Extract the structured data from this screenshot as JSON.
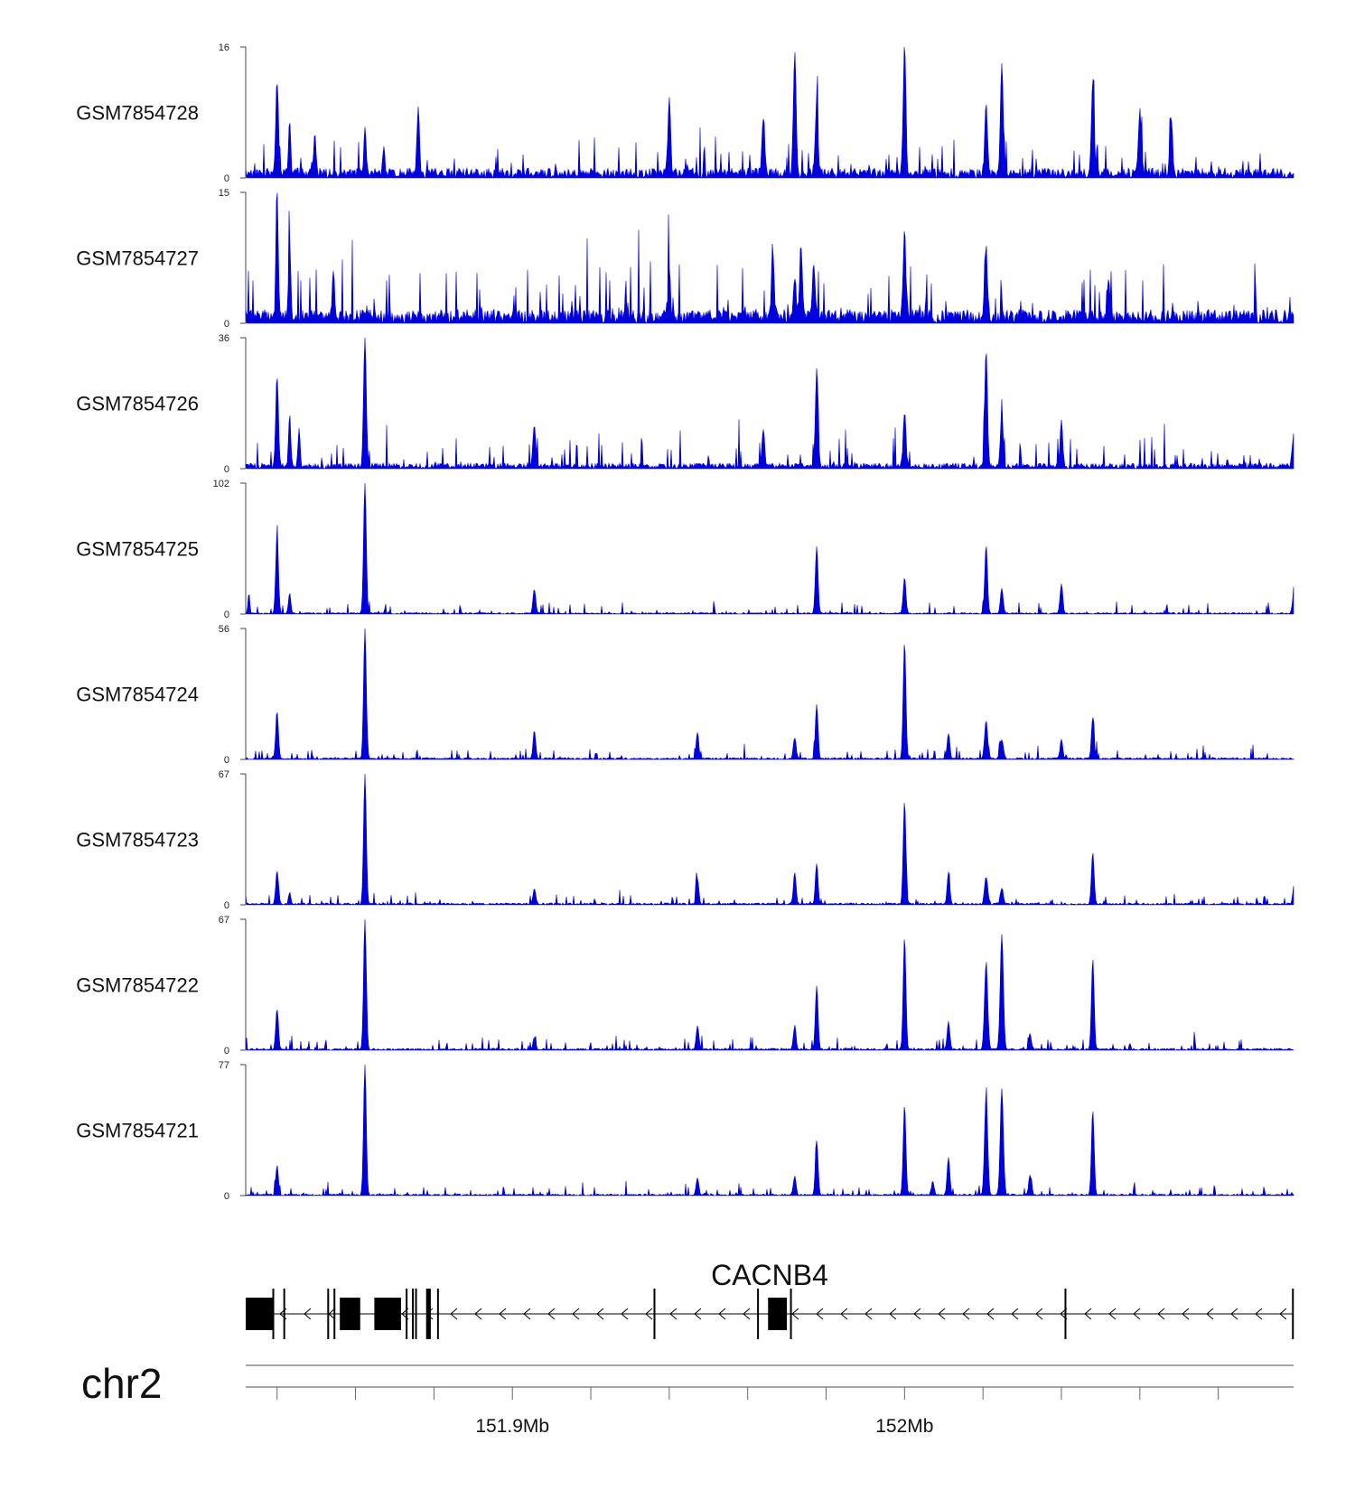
{
  "chart_data": {
    "type": "area",
    "colors": {
      "signal": "#0000dd",
      "axis": "#444444",
      "gene": "#000000"
    },
    "x_range_mb": [
      151.825,
      152.159
    ],
    "tracks": [
      {
        "name": "GSM7854728",
        "max": 16,
        "min": 0,
        "baseline": 1.2,
        "noise": 1.4,
        "seed": 11,
        "peaks": [
          [
            151.835,
            11.5,
            0.0006
          ],
          [
            151.839,
            6,
            0.0005
          ],
          [
            151.847,
            5,
            0.0005
          ],
          [
            151.863,
            6,
            0.0005
          ],
          [
            151.88,
            4,
            0.0005
          ],
          [
            151.88,
            4,
            0.0005
          ],
          [
            151.869,
            3.5,
            0.0005
          ],
          [
            151.96,
            8.8,
            0.0006
          ],
          [
            151.99,
            7,
            0.0006
          ],
          [
            152.0,
            6,
            0.0006
          ],
          [
            152.0,
            9,
            0.0006
          ],
          [
            152.007,
            9,
            0.0006
          ],
          [
            152.035,
            15.8,
            0.0006
          ],
          [
            152.061,
            8,
            0.0006
          ],
          [
            152.066,
            14,
            0.0006
          ],
          [
            152.095,
            11.5,
            0.0006
          ],
          [
            152.11,
            8,
            0.0006
          ],
          [
            152.12,
            7,
            0.0006
          ]
        ]
      },
      {
        "name": "GSM7854727",
        "max": 15,
        "min": 0,
        "baseline": 1.6,
        "noise": 2.0,
        "seed": 23,
        "peaks": [
          [
            151.835,
            15,
            0.0005
          ],
          [
            151.839,
            9,
            0.0005
          ],
          [
            151.853,
            5.5,
            0.0005
          ],
          [
            151.96,
            5,
            0.0006
          ],
          [
            151.993,
            8,
            0.0006
          ],
          [
            152.002,
            8,
            0.0006
          ],
          [
            152.006,
            6.5,
            0.0006
          ],
          [
            152.035,
            9.5,
            0.0006
          ],
          [
            152.061,
            7.5,
            0.0006
          ],
          [
            152.0,
            5,
            0.0006
          ],
          [
            152.1,
            5,
            0.0006
          ]
        ]
      },
      {
        "name": "GSM7854726",
        "max": 36,
        "min": 0,
        "baseline": 1.5,
        "noise": 2.5,
        "seed": 37,
        "peaks": [
          [
            151.835,
            25,
            0.0006
          ],
          [
            151.839,
            14,
            0.0005
          ],
          [
            151.842,
            10,
            0.0005
          ],
          [
            151.863,
            36,
            0.0006
          ],
          [
            151.917,
            12,
            0.0006
          ],
          [
            151.99,
            10,
            0.0006
          ],
          [
            152.007,
            27,
            0.0006
          ],
          [
            152.035,
            15,
            0.0006
          ],
          [
            152.061,
            32,
            0.0006
          ],
          [
            152.066,
            14,
            0.0006
          ],
          [
            152.085,
            12,
            0.0006
          ],
          [
            152.159,
            9,
            0.0006
          ]
        ]
      },
      {
        "name": "GSM7854725",
        "max": 102,
        "min": 0,
        "baseline": 1.2,
        "noise": 3.0,
        "seed": 41,
        "peaks": [
          [
            151.826,
            16,
            0.0004
          ],
          [
            151.835,
            62,
            0.0006
          ],
          [
            151.839,
            16,
            0.0005
          ],
          [
            151.863,
            102,
            0.0006
          ],
          [
            151.917,
            19,
            0.0006
          ],
          [
            152.007,
            52,
            0.0006
          ],
          [
            152.035,
            28,
            0.0006
          ],
          [
            152.061,
            53,
            0.0006
          ],
          [
            152.066,
            20,
            0.0006
          ],
          [
            152.085,
            23,
            0.0006
          ],
          [
            152.159,
            14,
            0.0006
          ]
        ]
      },
      {
        "name": "GSM7854724",
        "max": 56,
        "min": 0,
        "baseline": 0.8,
        "noise": 1.4,
        "seed": 53,
        "peaks": [
          [
            151.835,
            20,
            0.0006
          ],
          [
            151.863,
            56,
            0.0006
          ],
          [
            151.917,
            12,
            0.0006
          ],
          [
            151.969,
            11,
            0.0006
          ],
          [
            152.0,
            9,
            0.0006
          ],
          [
            152.007,
            23,
            0.0006
          ],
          [
            152.035,
            50,
            0.0006
          ],
          [
            152.049,
            11,
            0.0006
          ],
          [
            152.061,
            16,
            0.0007
          ],
          [
            152.066,
            8,
            0.0007
          ],
          [
            152.085,
            8,
            0.0006
          ],
          [
            152.095,
            18,
            0.0006
          ]
        ]
      },
      {
        "name": "GSM7854723",
        "max": 67,
        "min": 0,
        "baseline": 1.0,
        "noise": 1.6,
        "seed": 61,
        "peaks": [
          [
            151.835,
            17,
            0.0006
          ],
          [
            151.839,
            6,
            0.0005
          ],
          [
            151.863,
            67,
            0.0006
          ],
          [
            151.917,
            8,
            0.0006
          ],
          [
            151.969,
            13,
            0.0006
          ],
          [
            152.0,
            16,
            0.0006
          ],
          [
            152.007,
            21,
            0.0006
          ],
          [
            152.035,
            53,
            0.0006
          ],
          [
            152.049,
            16,
            0.0006
          ],
          [
            152.061,
            14,
            0.0007
          ],
          [
            152.066,
            8,
            0.0007
          ],
          [
            152.095,
            26,
            0.0006
          ],
          [
            152.159,
            7,
            0.0005
          ]
        ]
      },
      {
        "name": "GSM7854722",
        "max": 67,
        "min": 0,
        "baseline": 1.0,
        "noise": 1.8,
        "seed": 71,
        "peaks": [
          [
            151.835,
            21,
            0.0006
          ],
          [
            151.863,
            67,
            0.0006
          ],
          [
            151.917,
            6,
            0.0006
          ],
          [
            151.969,
            12,
            0.0006
          ],
          [
            152.0,
            12,
            0.0006
          ],
          [
            152.007,
            33,
            0.0006
          ],
          [
            152.035,
            58,
            0.0006
          ],
          [
            152.049,
            14,
            0.0006
          ],
          [
            152.061,
            44,
            0.0007
          ],
          [
            152.066,
            59,
            0.0007
          ],
          [
            152.075,
            8,
            0.0006
          ],
          [
            152.095,
            46,
            0.0006
          ]
        ]
      },
      {
        "name": "GSM7854721",
        "max": 77,
        "min": 0,
        "baseline": 1.0,
        "noise": 1.6,
        "seed": 83,
        "peaks": [
          [
            151.835,
            17,
            0.0006
          ],
          [
            151.863,
            77,
            0.0006
          ],
          [
            151.969,
            10,
            0.0006
          ],
          [
            152.0,
            11,
            0.0006
          ],
          [
            152.007,
            32,
            0.0006
          ],
          [
            152.035,
            53,
            0.0006
          ],
          [
            152.044,
            8,
            0.0006
          ],
          [
            152.049,
            22,
            0.0006
          ],
          [
            152.061,
            58,
            0.0007
          ],
          [
            152.066,
            62,
            0.0007
          ],
          [
            152.075,
            12,
            0.0006
          ],
          [
            152.095,
            50,
            0.0006
          ]
        ]
      }
    ],
    "gene": {
      "name": "CACNB4",
      "strand": "-",
      "span_mb": [
        151.825,
        152.159
      ],
      "exons": [
        [
          151.825,
          151.8335
        ],
        [
          151.8335,
          151.834
        ],
        [
          151.837,
          151.8373
        ],
        [
          151.851,
          151.8513
        ],
        [
          151.853,
          151.8534
        ],
        [
          151.855,
          151.8615
        ],
        [
          151.866,
          151.8745
        ],
        [
          151.876,
          151.8763
        ],
        [
          151.878,
          151.8782
        ],
        [
          151.879,
          151.8793
        ],
        [
          151.8825,
          151.884
        ],
        [
          151.886,
          151.8862
        ],
        [
          151.955,
          151.9552
        ],
        [
          151.988,
          151.9883
        ],
        [
          151.9915,
          151.9975
        ],
        [
          151.9985,
          151.999
        ],
        [
          152.086,
          152.0863
        ],
        [
          152.1585,
          152.159
        ]
      ]
    },
    "chromosome": "chr2",
    "ticks_mb": [
      151.835,
      151.86,
      151.885,
      151.91,
      151.935,
      151.96,
      151.985,
      152.01,
      152.035,
      152.06,
      152.085,
      152.11,
      152.135
    ],
    "tick_labels": [
      {
        "mb": 151.91,
        "label": "151.9Mb"
      },
      {
        "mb": 152.035,
        "label": "152Mb"
      }
    ]
  }
}
